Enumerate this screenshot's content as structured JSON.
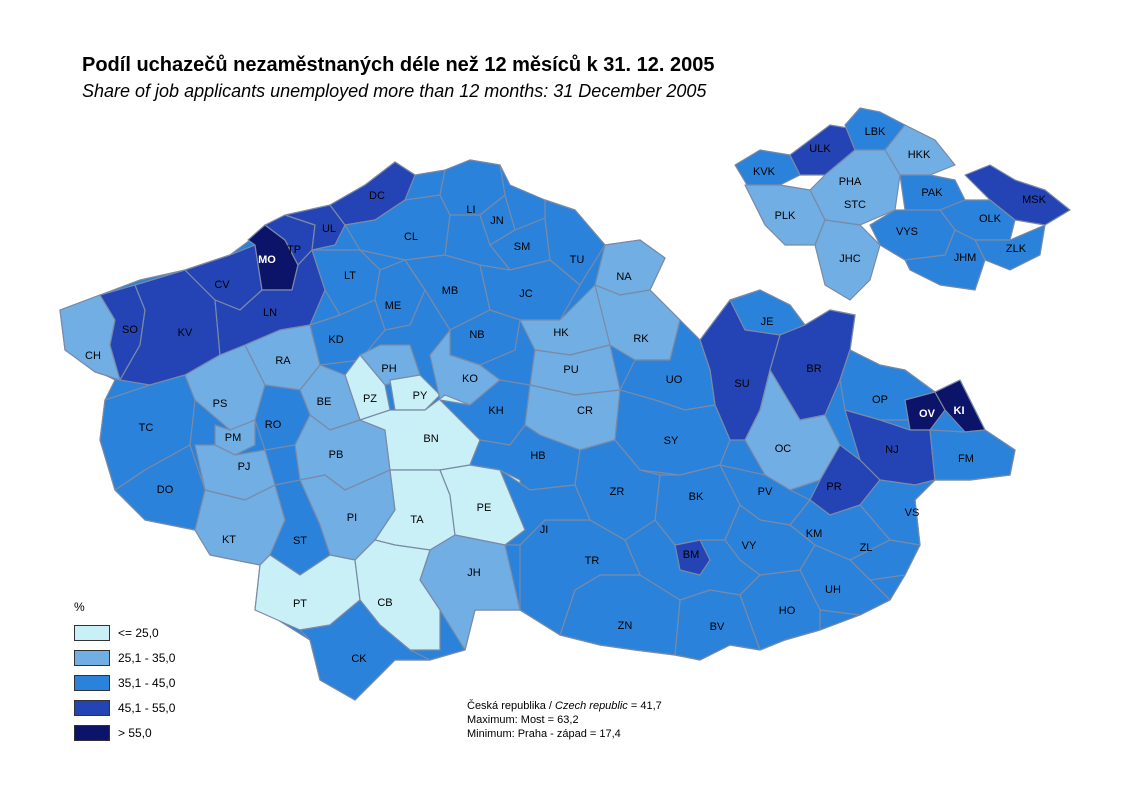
{
  "title": "Podíl uchazečů nezaměstnaných déle než 12 měsíců k 31. 12. 2005",
  "subtitle": "Share of job applicants unemployed more than 12 months: 31 December 2005",
  "colors": {
    "c1": "#c9f0f7",
    "c2": "#70aee3",
    "c3": "#2b82da",
    "c4": "#2444b6",
    "c5": "#0c1469",
    "border": "#7a8aa6"
  },
  "legend": {
    "unit": "%",
    "classes": [
      {
        "label": "<= 25,0",
        "color": "#c9f0f7"
      },
      {
        "label": "25,1 - 35,0",
        "color": "#70aee3"
      },
      {
        "label": "35,1 - 45,0",
        "color": "#2b82da"
      },
      {
        "label": "45,1 - 55,0",
        "color": "#2444b6"
      },
      {
        "label": "> 55,0",
        "color": "#0c1469"
      }
    ]
  },
  "notes": {
    "line1_cz": "Česká republika / ",
    "line1_en": "Czech republic",
    "line1_val": " = 41,7",
    "line2": "Maximum:  Most =  63,2",
    "line3": "Minimum: Praha - západ  = 17,4"
  },
  "districts": [
    {
      "code": "CH",
      "class": 2
    },
    {
      "code": "SO",
      "class": 4
    },
    {
      "code": "KV",
      "class": 4
    },
    {
      "code": "CV",
      "class": 4
    },
    {
      "code": "MO",
      "class": 5
    },
    {
      "code": "TP",
      "class": 4
    },
    {
      "code": "UL",
      "class": 4
    },
    {
      "code": "DC",
      "class": 4
    },
    {
      "code": "LN",
      "class": 4
    },
    {
      "code": "CL",
      "class": 3
    },
    {
      "code": "LI",
      "class": 3
    },
    {
      "code": "JN",
      "class": 3
    },
    {
      "code": "SM",
      "class": 3
    },
    {
      "code": "TU",
      "class": 3
    },
    {
      "code": "NA",
      "class": 2
    },
    {
      "code": "LT",
      "class": 3
    },
    {
      "code": "ME",
      "class": 3
    },
    {
      "code": "MB",
      "class": 3
    },
    {
      "code": "JC",
      "class": 3
    },
    {
      "code": "TC",
      "class": 3
    },
    {
      "code": "PS",
      "class": 2
    },
    {
      "code": "RA",
      "class": 2
    },
    {
      "code": "KD",
      "class": 3
    },
    {
      "code": "PH",
      "class": 2
    },
    {
      "code": "PZ",
      "class": 1
    },
    {
      "code": "PY",
      "class": 1
    },
    {
      "code": "NB",
      "class": 3
    },
    {
      "code": "HK",
      "class": 2
    },
    {
      "code": "RK",
      "class": 2
    },
    {
      "code": "PU",
      "class": 2
    },
    {
      "code": "KO",
      "class": 2
    },
    {
      "code": "BE",
      "class": 2
    },
    {
      "code": "RO",
      "class": 3
    },
    {
      "code": "PM",
      "class": 2
    },
    {
      "code": "PJ",
      "class": 2
    },
    {
      "code": "DO",
      "class": 3
    },
    {
      "code": "KT",
      "class": 2
    },
    {
      "code": "PB",
      "class": 2
    },
    {
      "code": "BN",
      "class": 1
    },
    {
      "code": "KH",
      "class": 3
    },
    {
      "code": "CR",
      "class": 2
    },
    {
      "code": "HB",
      "class": 3
    },
    {
      "code": "PI",
      "class": 2
    },
    {
      "code": "ST",
      "class": 3
    },
    {
      "code": "TA",
      "class": 1
    },
    {
      "code": "PE",
      "class": 1
    },
    {
      "code": "JH",
      "class": 2
    },
    {
      "code": "PT",
      "class": 1
    },
    {
      "code": "CB",
      "class": 1
    },
    {
      "code": "CK",
      "class": 3
    },
    {
      "code": "JE",
      "class": 3
    },
    {
      "code": "SU",
      "class": 4
    },
    {
      "code": "BR",
      "class": 4
    },
    {
      "code": "UO",
      "class": 3
    },
    {
      "code": "SY",
      "class": 3
    },
    {
      "code": "OC",
      "class": 2
    },
    {
      "code": "OP",
      "class": 3
    },
    {
      "code": "OV",
      "class": 5
    },
    {
      "code": "KI",
      "class": 5
    },
    {
      "code": "NJ",
      "class": 4
    },
    {
      "code": "FM",
      "class": 3
    },
    {
      "code": "PR",
      "class": 4
    },
    {
      "code": "PV",
      "class": 3
    },
    {
      "code": "VS",
      "class": 3
    },
    {
      "code": "KM",
      "class": 3
    },
    {
      "code": "ZL",
      "class": 3
    },
    {
      "code": "UH",
      "class": 3
    },
    {
      "code": "HO",
      "class": 3
    },
    {
      "code": "BV",
      "class": 3
    },
    {
      "code": "ZN",
      "class": 3
    },
    {
      "code": "TR",
      "class": 3
    },
    {
      "code": "BM",
      "class": 4
    },
    {
      "code": "BK",
      "class": 3
    },
    {
      "code": "VY",
      "class": 3
    },
    {
      "code": "ZR",
      "class": 3
    },
    {
      "code": "JI",
      "class": 3
    }
  ],
  "regions": [
    {
      "code": "KVK",
      "class": 3
    },
    {
      "code": "ULK",
      "class": 4
    },
    {
      "code": "LBK",
      "class": 3
    },
    {
      "code": "HKK",
      "class": 2
    },
    {
      "code": "PHA",
      "class": 2
    },
    {
      "code": "STC",
      "class": 2
    },
    {
      "code": "PAK",
      "class": 3
    },
    {
      "code": "MSK",
      "class": 4
    },
    {
      "code": "PLK",
      "class": 2
    },
    {
      "code": "OLK",
      "class": 3
    },
    {
      "code": "VYS",
      "class": 3
    },
    {
      "code": "ZLK",
      "class": 3
    },
    {
      "code": "JHC",
      "class": 2
    },
    {
      "code": "JHM",
      "class": 3
    }
  ]
}
